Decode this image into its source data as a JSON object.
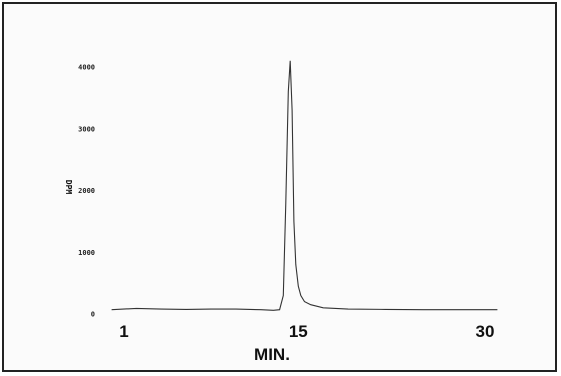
{
  "chart_data": {
    "type": "line",
    "title": "",
    "xlabel": "MIN.",
    "ylabel": "DPM",
    "xlim": [
      0,
      32
    ],
    "ylim": [
      0,
      4400
    ],
    "x_ticks": [
      1,
      15,
      30
    ],
    "y_ticks": [
      0,
      1000,
      2000,
      3000,
      4000
    ],
    "y_tick_labels": [
      "0",
      "1000",
      "2000",
      "3000",
      "4000"
    ],
    "grid": false,
    "series": [
      {
        "color": "#333333",
        "x": [
          0,
          2,
          4,
          6,
          8,
          10,
          12,
          13.0,
          13.5,
          13.8,
          14.0,
          14.2,
          14.35,
          14.5,
          14.65,
          14.8,
          15.0,
          15.2,
          15.5,
          16.0,
          17.0,
          19.0,
          22.0,
          25.0,
          28.0,
          31.0
        ],
        "y": [
          70,
          90,
          80,
          75,
          80,
          80,
          70,
          60,
          70,
          300,
          1800,
          3600,
          4100,
          3300,
          1500,
          800,
          450,
          300,
          200,
          150,
          100,
          80,
          75,
          70,
          70,
          70
        ]
      }
    ]
  }
}
